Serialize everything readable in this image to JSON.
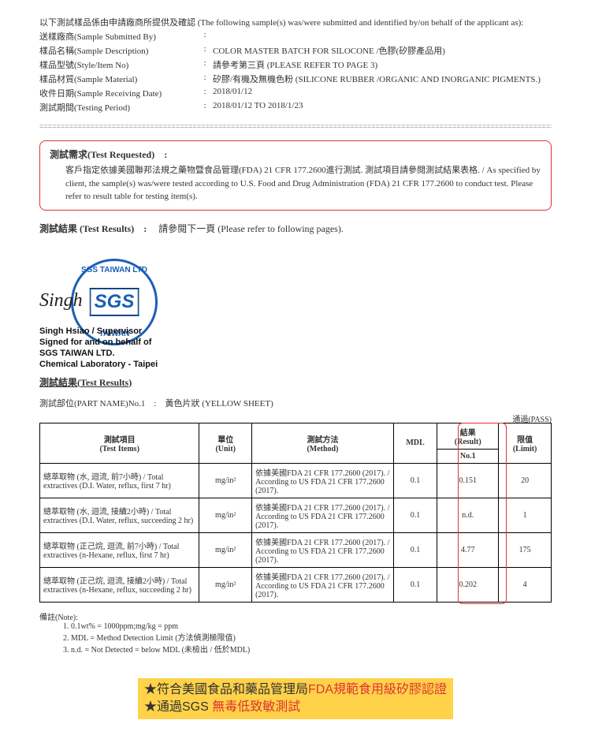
{
  "intro": "以下測試樣品係由申請廠商所提供及確認 (The following sample(s) was/were submitted and identified by/on behalf of the applicant as):",
  "fields": {
    "submittedBy": {
      "label": "送樣廠商(Sample Submitted By)",
      "value": ""
    },
    "description": {
      "label": "樣品名稱(Sample Description)",
      "value": "COLOR MASTER BATCH FOR SILOCONE /色膠(矽膠產品用)"
    },
    "style": {
      "label": "樣品型號(Style/Item No)",
      "value": "請參考第三頁 (PLEASE REFER TO PAGE 3)"
    },
    "material": {
      "label": "樣品材質(Sample Material)",
      "value": "矽膠/有機及無機色粉 (SILICONE RUBBER /ORGANIC AND INORGANIC PIGMENTS.)"
    },
    "recvDate": {
      "label": "收件日期(Sample Receiving Date)",
      "value": "2018/01/12"
    },
    "period": {
      "label": "測試期間(Testing Period)",
      "value": "2018/01/12 TO 2018/1/23"
    }
  },
  "testReq": {
    "title": "測試需求(Test Requested)　:",
    "body": "客戶指定依據美國聯邦法規之藥物暨食品管理(FDA) 21 CFR 177.2600進行測試. 測試項目請參閱測試結果表格. / As specified by client, the sample(s) was/were tested according to U.S. Food and Drug Administration (FDA) 21 CFR 177.2600 to conduct test. Please refer to result table for testing item(s)."
  },
  "testResultsLine": {
    "label": "測試結果 (Test Results)　:",
    "value": "請參閱下一頁 (Please refer to following pages)."
  },
  "stamp": {
    "top": "SGS TAIWAN LTD",
    "bot": "TAIWAN"
  },
  "sig": {
    "name": "Singh",
    "lines": "Singh Hsiao / Supervisor\nSigned for and on behalf of\nSGS TAIWAN LTD.\nChemical Laboratory - Taipei"
  },
  "resultsTitle": "測試結果(Test Results)",
  "partLine": "測試部位(PART NAME)No.1　:　黃色片狀 (YELLOW SHEET)",
  "passLabel": "通過(PASS)",
  "headers": {
    "item": "測試項目\n(Test Items)",
    "unit": "單位\n(Unit)",
    "method": "測試方法\n(Method)",
    "mdl": "MDL",
    "result": "結果\n(Result)",
    "resultSub": "No.1",
    "limit": "限值\n(Limit)"
  },
  "rows": [
    {
      "item": "總萃取物 (水, 迴流, 前7小時) / Total extractives (D.I. Water, reflux, first 7 hr)",
      "unit": "mg/in²",
      "method": "依據美國FDA 21 CFR 177.2600 (2017). / According to US FDA 21 CFR 177.2600 (2017).",
      "mdl": "0.1",
      "result": "0.151",
      "limit": "20"
    },
    {
      "item": "總萃取物 (水, 迴流, 接續2小時) / Total extractives (D.I. Water, reflux, succeeding 2 hr)",
      "unit": "mg/in²",
      "method": "依據美國FDA 21 CFR 177.2600 (2017). / According to US FDA 21 CFR 177.2600 (2017).",
      "mdl": "0.1",
      "result": "n.d.",
      "limit": "1"
    },
    {
      "item": "總萃取物 (正己烷, 迴流, 前7小時) / Total extractives (n-Hexane, reflux, first 7 hr)",
      "unit": "mg/in²",
      "method": "依據美國FDA 21 CFR 177.2600 (2017). / According to US FDA 21 CFR 177.2600 (2017).",
      "mdl": "0.1",
      "result": "4.77",
      "limit": "175"
    },
    {
      "item": "總萃取物 (正己烷, 迴流, 接續2小時) / Total extractives (n-Hexane, reflux, succeeding 2 hr)",
      "unit": "mg/in²",
      "method": "依據美國FDA 21 CFR 177.2600 (2017). / According to US FDA 21 CFR 177.2600 (2017).",
      "mdl": "0.1",
      "result": "0.202",
      "limit": "4"
    }
  ],
  "notes": {
    "title": "備註(Note):",
    "items": [
      "1. 0.1wt% = 1000ppm;mg/kg = ppm",
      "2. MDL = Method Detection Limit (方法偵測極限值)",
      "3. n.d. = Not Detected = below MDL (未檢出 / 低於MDL)"
    ]
  },
  "banner": {
    "line1a": "★符合美國食品和藥品管理局",
    "line1b": "FDA規範食用級矽膠認證",
    "line2a": "★通過SGS ",
    "line2b": "無毒低致敏測試"
  }
}
